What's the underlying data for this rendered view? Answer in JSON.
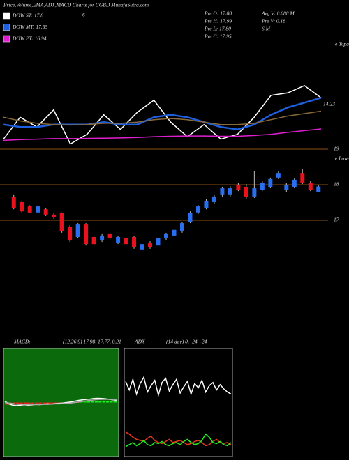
{
  "header": {
    "title": "Price,Volume,EMA,ADX,MACD Charts for CGBD MunafaSutra.com",
    "legend_extra": "6",
    "stats": [
      [
        "Pre  O: 17.80",
        "Avg  V: 0.088  M"
      ],
      [
        "Pre  H: 17.99",
        "Pre  V: 0.18"
      ],
      [
        "Pre  L: 17.80",
        "6  M"
      ],
      [
        "Pre  C: 17.95",
        null
      ]
    ]
  },
  "chart_data": [
    {
      "type": "line",
      "ylim": [
        15.96,
        20.4
      ],
      "annotations": [
        "14.23"
      ],
      "edge_label": "e Topa",
      "series": [
        {
          "name": "DOW ST: 17.8",
          "color": "#ffffff",
          "values": [
            16.4,
            17.3,
            16.9,
            17.6,
            16.2,
            16.6,
            17.4,
            16.8,
            17.5,
            18.0,
            17.1,
            16.5,
            17.0,
            16.4,
            16.6,
            17.3,
            18.2,
            18.3,
            18.6,
            18.1
          ]
        },
        {
          "name": "DOW MT: 17.55",
          "color": "#1e5fe0",
          "values": [
            17.0,
            16.9,
            16.9,
            17.0,
            17.0,
            17.0,
            17.1,
            17.0,
            17.0,
            17.3,
            17.4,
            17.3,
            17.1,
            16.9,
            16.8,
            17.0,
            17.4,
            17.7,
            17.9,
            18.1
          ]
        },
        {
          "name": "DOW PT: 16.94",
          "color": "#e020d0",
          "values": [
            16.35,
            16.38,
            16.4,
            16.42,
            16.42,
            16.43,
            16.44,
            16.45,
            16.47,
            16.5,
            16.52,
            16.53,
            16.53,
            16.52,
            16.52,
            16.55,
            16.6,
            16.68,
            16.75,
            16.82
          ]
        },
        {
          "color": "#8a6a3a",
          "values": [
            17.3,
            17.15,
            17.05,
            17.0,
            16.98,
            17.0,
            17.05,
            17.05,
            17.1,
            17.2,
            17.25,
            17.2,
            17.1,
            17.0,
            17.0,
            17.05,
            17.2,
            17.35,
            17.45,
            17.55
          ]
        }
      ]
    },
    {
      "type": "candlestick",
      "ylim": [
        13.5,
        19.5
      ],
      "yticks": [
        17,
        18,
        19
      ],
      "grid": true,
      "grid_color": "#b86a1a",
      "up_color": "#2a6ef0",
      "down_color": "#e8121e",
      "edge_label": "e Lowes",
      "open": [
        17.65,
        17.51,
        17.39,
        17.22,
        17.31,
        17.16,
        17.2,
        16.82,
        16.53,
        16.88,
        16.53,
        16.43,
        16.61,
        16.37,
        16.49,
        16.53,
        16.18,
        16.37,
        16.29,
        16.49,
        16.57,
        16.69,
        16.96,
        17.22,
        17.35,
        17.51,
        17.71,
        17.71,
        18.0,
        17.94,
        17.67,
        17.86,
        17.94,
        18.2,
        17.86,
        17.94,
        18.33,
        18.06,
        17.8
      ],
      "high": [
        17.71,
        17.55,
        17.42,
        17.42,
        17.35,
        17.2,
        17.22,
        16.86,
        16.92,
        16.92,
        16.57,
        16.61,
        16.65,
        16.57,
        16.53,
        16.57,
        16.37,
        16.41,
        16.53,
        16.65,
        16.76,
        16.96,
        17.25,
        17.43,
        17.59,
        17.71,
        17.94,
        17.96,
        18.06,
        18.02,
        18.39,
        18.1,
        18.2,
        18.37,
        18.04,
        18.18,
        18.43,
        18.1,
        17.99
      ],
      "low": [
        17.31,
        17.22,
        17.2,
        17.2,
        17.12,
        17.04,
        16.65,
        16.39,
        16.49,
        16.29,
        16.29,
        16.39,
        16.45,
        16.33,
        16.29,
        16.2,
        16.1,
        16.2,
        16.24,
        16.45,
        16.53,
        16.65,
        16.92,
        17.18,
        17.31,
        17.47,
        17.67,
        17.67,
        17.82,
        17.61,
        17.63,
        17.82,
        17.9,
        18.16,
        17.8,
        17.9,
        18.02,
        17.82,
        17.8
      ],
      "close": [
        17.35,
        17.25,
        17.22,
        17.39,
        17.16,
        17.08,
        16.69,
        16.43,
        16.88,
        16.33,
        16.33,
        16.57,
        16.49,
        16.53,
        16.33,
        16.24,
        16.33,
        16.24,
        16.49,
        16.61,
        16.73,
        16.92,
        17.2,
        17.39,
        17.55,
        17.67,
        17.9,
        17.9,
        17.86,
        17.65,
        17.9,
        18.06,
        18.16,
        18.33,
        18.0,
        18.14,
        18.06,
        17.86,
        17.95
      ]
    },
    {
      "type": "line",
      "title": "MACD:",
      "params": "(12,26,9) 17.98, 17.77, 0.21",
      "ylim": [
        -2,
        2
      ],
      "background": "#0b6a0b",
      "histogram": [
        -0.08,
        -0.09,
        -0.08,
        -0.07,
        -0.08,
        -0.09,
        -0.08,
        -0.07,
        -0.06,
        -0.07,
        -0.08,
        -0.07,
        -0.06,
        -0.05,
        -0.06,
        -0.05,
        -0.04,
        -0.03,
        -0.02,
        -0.01,
        0.02,
        0.03,
        0.04,
        0.05,
        0.06,
        0.06,
        0.07,
        0.06,
        0.05,
        0.05
      ],
      "pos_color": "#22ee22",
      "neg_color": "#ee2222",
      "series": [
        {
          "color": "#ffffff",
          "values": [
            0.05,
            -0.05,
            -0.1,
            -0.12,
            -0.1,
            -0.08,
            -0.1,
            -0.09,
            -0.07,
            -0.08,
            -0.06,
            -0.05,
            -0.06,
            -0.04,
            -0.03,
            -0.02,
            0,
            0.02,
            0.05,
            0.08,
            0.1,
            0.12,
            0.13,
            0.15,
            0.16,
            0.15,
            0.14,
            0.12,
            0.1,
            0.08
          ]
        },
        {
          "color": "#aaaaaa",
          "values": [
            0,
            -0.02,
            -0.04,
            -0.06,
            -0.07,
            -0.07,
            -0.08,
            -0.08,
            -0.08,
            -0.08,
            -0.07,
            -0.07,
            -0.06,
            -0.05,
            -0.05,
            -0.04,
            -0.03,
            -0.02,
            0,
            0.02,
            0.04,
            0.06,
            0.08,
            0.1,
            0.11,
            0.12,
            0.12,
            0.12,
            0.11,
            0.1
          ]
        }
      ]
    },
    {
      "type": "line",
      "title": "ADX",
      "params": "(14 day) 0, -24, -24",
      "ylim": [
        0,
        100
      ],
      "background": "#000000",
      "series": [
        {
          "color": "#ffffff",
          "values": [
            70,
            62,
            72,
            58,
            68,
            74,
            60,
            66,
            71,
            57,
            69,
            73,
            61,
            67,
            72,
            59,
            65,
            70,
            58,
            68,
            64,
            71,
            60,
            66,
            69,
            62,
            67,
            63,
            60,
            58
          ]
        },
        {
          "color": "#e8351e",
          "values": [
            22,
            20,
            17,
            15,
            14,
            13,
            16,
            18,
            14,
            12,
            11,
            13,
            15,
            12,
            13,
            14,
            12,
            10,
            11,
            13,
            14,
            12,
            9,
            10,
            13,
            15,
            12,
            11,
            12,
            10
          ]
        },
        {
          "color": "#22ee22",
          "values": [
            8,
            10,
            12,
            9,
            11,
            14,
            10,
            9,
            12,
            11,
            13,
            10,
            9,
            11,
            12,
            10,
            13,
            15,
            12,
            10,
            11,
            14,
            20,
            17,
            12,
            11,
            13,
            10,
            9,
            12
          ]
        }
      ]
    }
  ]
}
